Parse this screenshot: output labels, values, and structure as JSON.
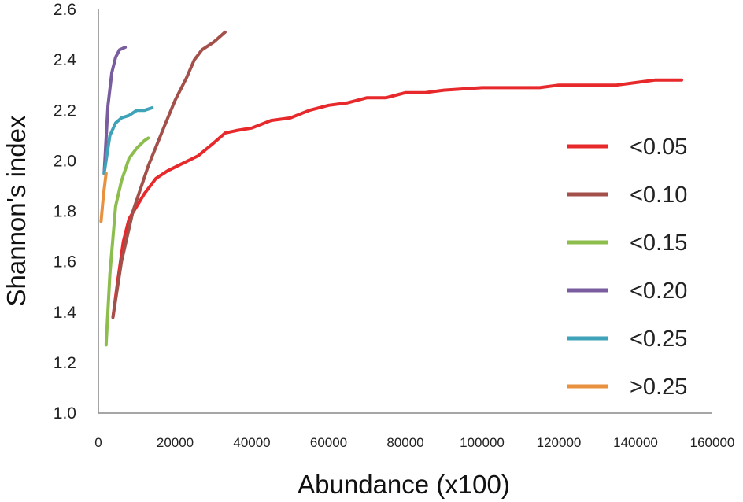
{
  "chart_data": {
    "type": "line",
    "title": "",
    "xlabel": "Abundance (x100)",
    "ylabel": "Shannon's index",
    "xlim": [
      0,
      160000
    ],
    "ylim": [
      1.0,
      2.6
    ],
    "x_ticks": [
      "0",
      "20000",
      "40000",
      "60000",
      "80000",
      "100000",
      "120000",
      "140000",
      "160000"
    ],
    "y_ticks": [
      "1.0",
      "1.2",
      "1.4",
      "1.6",
      "1.8",
      "2.0",
      "2.2",
      "2.4",
      "2.6"
    ],
    "grid": false,
    "legend_position": "right",
    "series": [
      {
        "name": "<0.05",
        "color": "#e8292b",
        "points": [
          [
            3800,
            1.38
          ],
          [
            5000,
            1.52
          ],
          [
            6500,
            1.68
          ],
          [
            8000,
            1.77
          ],
          [
            10000,
            1.82
          ],
          [
            12000,
            1.87
          ],
          [
            15000,
            1.93
          ],
          [
            18000,
            1.96
          ],
          [
            22000,
            1.99
          ],
          [
            26000,
            2.02
          ],
          [
            30000,
            2.07
          ],
          [
            33000,
            2.11
          ],
          [
            36000,
            2.12
          ],
          [
            40000,
            2.13
          ],
          [
            45000,
            2.16
          ],
          [
            50000,
            2.17
          ],
          [
            55000,
            2.2
          ],
          [
            60000,
            2.22
          ],
          [
            65000,
            2.23
          ],
          [
            70000,
            2.25
          ],
          [
            75000,
            2.25
          ],
          [
            80000,
            2.27
          ],
          [
            85000,
            2.27
          ],
          [
            90000,
            2.28
          ],
          [
            100000,
            2.29
          ],
          [
            110000,
            2.29
          ],
          [
            115000,
            2.29
          ],
          [
            120000,
            2.3
          ],
          [
            130000,
            2.3
          ],
          [
            135000,
            2.3
          ],
          [
            140000,
            2.31
          ],
          [
            145000,
            2.32
          ],
          [
            152000,
            2.32
          ]
        ]
      },
      {
        "name": "<0.10",
        "color": "#a3504b",
        "points": [
          [
            3800,
            1.38
          ],
          [
            6000,
            1.6
          ],
          [
            9000,
            1.8
          ],
          [
            13000,
            1.98
          ],
          [
            17000,
            2.13
          ],
          [
            20000,
            2.24
          ],
          [
            23000,
            2.33
          ],
          [
            25000,
            2.4
          ],
          [
            27000,
            2.44
          ],
          [
            30000,
            2.47
          ],
          [
            33000,
            2.51
          ]
        ]
      },
      {
        "name": "<0.15",
        "color": "#8cbd4d",
        "points": [
          [
            2000,
            1.27
          ],
          [
            3000,
            1.55
          ],
          [
            4500,
            1.82
          ],
          [
            6000,
            1.92
          ],
          [
            8000,
            2.01
          ],
          [
            10000,
            2.05
          ],
          [
            12000,
            2.08
          ],
          [
            13000,
            2.09
          ]
        ]
      },
      {
        "name": "<0.20",
        "color": "#7a5d9e",
        "points": [
          [
            1500,
            1.95
          ],
          [
            2500,
            2.22
          ],
          [
            3500,
            2.35
          ],
          [
            4500,
            2.41
          ],
          [
            5500,
            2.44
          ],
          [
            7000,
            2.45
          ]
        ]
      },
      {
        "name": "<0.25",
        "color": "#3ea2b9",
        "points": [
          [
            1500,
            1.95
          ],
          [
            3000,
            2.1
          ],
          [
            4500,
            2.15
          ],
          [
            6000,
            2.17
          ],
          [
            8000,
            2.18
          ],
          [
            10000,
            2.2
          ],
          [
            12000,
            2.2
          ],
          [
            14000,
            2.21
          ]
        ]
      },
      {
        "name": ">0.25",
        "color": "#e8913e",
        "points": [
          [
            700,
            1.76
          ],
          [
            1300,
            1.86
          ],
          [
            2000,
            1.95
          ]
        ]
      }
    ]
  }
}
